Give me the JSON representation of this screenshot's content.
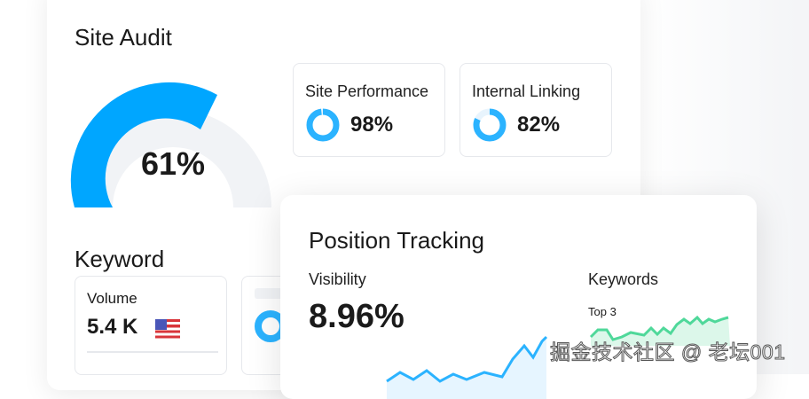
{
  "site_audit": {
    "title": "Site Audit",
    "gauge_value": "61%",
    "gauge_fraction": 0.61,
    "metrics": [
      {
        "label": "Site Performance",
        "value": "98%",
        "fraction": 0.98
      },
      {
        "label": "Internal Linking",
        "value": "82%",
        "fraction": 0.82
      }
    ]
  },
  "keyword": {
    "title": "Keyword",
    "volume_label": "Volume",
    "volume_value": "5.4 K",
    "flag_icon": "us-flag-icon"
  },
  "position_tracking": {
    "title": "Position Tracking",
    "visibility_label": "Visibility",
    "visibility_value": "8.96%",
    "keywords_label": "Keywords",
    "keywords_sub": "Top 3"
  },
  "colors": {
    "accent": "#00a6ff",
    "green": "#4fd89a",
    "track": "#f1f3f6"
  },
  "watermark": "掘金技术社区 @ 老坛001"
}
